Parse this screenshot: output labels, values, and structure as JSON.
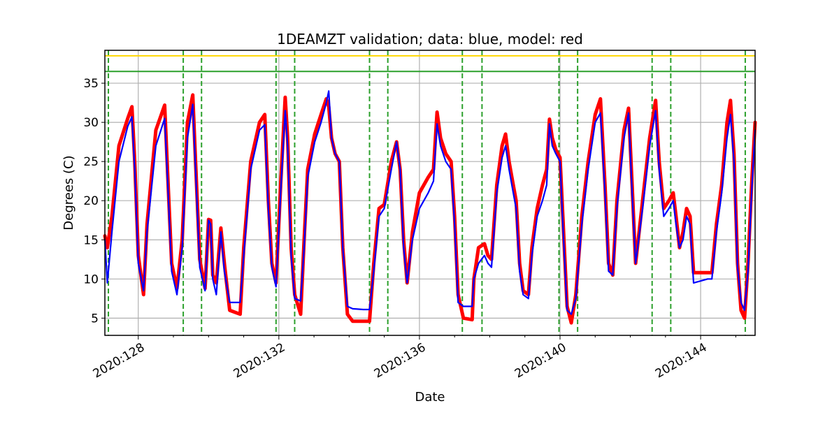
{
  "chart_data": {
    "type": "line",
    "title": "1DEAMZT validation; data: blue, model: red",
    "xlabel": "Date",
    "ylabel": "Degrees (C)",
    "xlim": [
      127.05,
      145.55
    ],
    "ylim": [
      2.8,
      39.2
    ],
    "x_ticks": [
      {
        "value": 128,
        "label": "2020:128"
      },
      {
        "value": 132,
        "label": "2020:132"
      },
      {
        "value": 136,
        "label": "2020:136"
      },
      {
        "value": 140,
        "label": "2020:140"
      },
      {
        "value": 144,
        "label": "2020:144"
      }
    ],
    "y_ticks": [
      5,
      10,
      15,
      20,
      25,
      30,
      35
    ],
    "grid": true,
    "horizontal_lines": [
      {
        "y": 38.5,
        "color": "#ffd700"
      },
      {
        "y": 36.5,
        "color": "#2ca02c"
      }
    ],
    "vertical_dashed_lines": [
      127.15,
      129.28,
      129.8,
      131.92,
      132.45,
      134.58,
      135.1,
      137.22,
      137.78,
      139.97,
      140.5,
      142.62,
      143.15,
      145.27
    ],
    "series": [
      {
        "color": "#ff0000",
        "points": [
          [
            127.05,
            15.5
          ],
          [
            127.12,
            14.0
          ],
          [
            127.25,
            18.0
          ],
          [
            127.45,
            27.0
          ],
          [
            127.7,
            30.5
          ],
          [
            127.82,
            32.0
          ],
          [
            127.9,
            25.0
          ],
          [
            128.0,
            13.0
          ],
          [
            128.15,
            8.0
          ],
          [
            128.25,
            17.0
          ],
          [
            128.5,
            29.0
          ],
          [
            128.75,
            32.2
          ],
          [
            128.85,
            22.0
          ],
          [
            128.95,
            12.0
          ],
          [
            129.1,
            8.8
          ],
          [
            129.25,
            15.0
          ],
          [
            129.4,
            30.0
          ],
          [
            129.55,
            33.5
          ],
          [
            129.62,
            26.0
          ],
          [
            129.75,
            12.5
          ],
          [
            129.9,
            8.8
          ],
          [
            130.0,
            17.6
          ],
          [
            130.06,
            17.5
          ],
          [
            130.12,
            10.5
          ],
          [
            130.22,
            9.5
          ],
          [
            130.35,
            16.5
          ],
          [
            130.45,
            12.0
          ],
          [
            130.6,
            6.0
          ],
          [
            130.9,
            5.5
          ],
          [
            131.0,
            14.0
          ],
          [
            131.2,
            25.0
          ],
          [
            131.45,
            30.0
          ],
          [
            131.6,
            31.0
          ],
          [
            131.7,
            20.0
          ],
          [
            131.8,
            12.0
          ],
          [
            131.92,
            9.5
          ],
          [
            132.05,
            22.0
          ],
          [
            132.18,
            33.2
          ],
          [
            132.25,
            28.0
          ],
          [
            132.35,
            14.0
          ],
          [
            132.45,
            8.0
          ],
          [
            132.62,
            5.5
          ],
          [
            132.72,
            15.0
          ],
          [
            132.82,
            24.0
          ],
          [
            133.02,
            28.5
          ],
          [
            133.2,
            31.0
          ],
          [
            133.35,
            33.0
          ],
          [
            133.42,
            32.0
          ],
          [
            133.5,
            28.0
          ],
          [
            133.6,
            26.0
          ],
          [
            133.72,
            25.0
          ],
          [
            133.82,
            14.0
          ],
          [
            133.95,
            5.5
          ],
          [
            134.1,
            4.6
          ],
          [
            134.4,
            4.6
          ],
          [
            134.58,
            4.6
          ],
          [
            134.7,
            12.0
          ],
          [
            134.85,
            19.0
          ],
          [
            135.0,
            19.5
          ],
          [
            135.2,
            25.0
          ],
          [
            135.35,
            27.5
          ],
          [
            135.45,
            24.0
          ],
          [
            135.55,
            15.0
          ],
          [
            135.65,
            9.5
          ],
          [
            135.8,
            16.0
          ],
          [
            136.0,
            21.0
          ],
          [
            136.25,
            23.0
          ],
          [
            136.4,
            24.0
          ],
          [
            136.5,
            31.3
          ],
          [
            136.6,
            28.0
          ],
          [
            136.75,
            26.0
          ],
          [
            136.9,
            25.0
          ],
          [
            137.0,
            18.0
          ],
          [
            137.1,
            8.0
          ],
          [
            137.25,
            5.0
          ],
          [
            137.5,
            4.8
          ],
          [
            137.55,
            10.0
          ],
          [
            137.68,
            14.0
          ],
          [
            137.85,
            14.5
          ],
          [
            137.95,
            13.0
          ],
          [
            138.05,
            12.5
          ],
          [
            138.2,
            22.0
          ],
          [
            138.35,
            27.0
          ],
          [
            138.45,
            28.5
          ],
          [
            138.55,
            25.0
          ],
          [
            138.65,
            22.5
          ],
          [
            138.75,
            20.0
          ],
          [
            138.85,
            12.0
          ],
          [
            138.95,
            8.5
          ],
          [
            139.1,
            8.0
          ],
          [
            139.2,
            14.0
          ],
          [
            139.35,
            19.0
          ],
          [
            139.5,
            22.0
          ],
          [
            139.62,
            24.0
          ],
          [
            139.7,
            30.4
          ],
          [
            139.78,
            28.0
          ],
          [
            139.88,
            26.5
          ],
          [
            140.0,
            25.5
          ],
          [
            140.08,
            18.0
          ],
          [
            140.2,
            6.5
          ],
          [
            140.32,
            4.4
          ],
          [
            140.45,
            8.0
          ],
          [
            140.62,
            18.0
          ],
          [
            140.8,
            25.0
          ],
          [
            141.0,
            31.0
          ],
          [
            141.15,
            33.0
          ],
          [
            141.28,
            22.0
          ],
          [
            141.38,
            12.0
          ],
          [
            141.5,
            10.5
          ],
          [
            141.62,
            20.0
          ],
          [
            141.82,
            29.0
          ],
          [
            141.95,
            31.8
          ],
          [
            142.05,
            22.0
          ],
          [
            142.15,
            12.0
          ],
          [
            142.35,
            20.0
          ],
          [
            142.55,
            28.0
          ],
          [
            142.72,
            32.8
          ],
          [
            142.82,
            25.0
          ],
          [
            142.95,
            19.0
          ],
          [
            143.1,
            20.0
          ],
          [
            143.22,
            21.0
          ],
          [
            143.3,
            18.0
          ],
          [
            143.4,
            14.0
          ],
          [
            143.5,
            16.0
          ],
          [
            143.6,
            19.0
          ],
          [
            143.7,
            18.0
          ],
          [
            143.8,
            10.8
          ],
          [
            144.2,
            10.8
          ],
          [
            144.32,
            10.8
          ],
          [
            144.45,
            17.0
          ],
          [
            144.6,
            22.0
          ],
          [
            144.75,
            30.0
          ],
          [
            144.85,
            32.8
          ],
          [
            144.95,
            26.0
          ],
          [
            145.05,
            12.0
          ],
          [
            145.15,
            6.0
          ],
          [
            145.25,
            5.0
          ],
          [
            145.35,
            12.0
          ],
          [
            145.45,
            22.0
          ],
          [
            145.55,
            30.0
          ]
        ]
      },
      {
        "color": "#0000ff",
        "points": [
          [
            127.05,
            15.0
          ],
          [
            127.12,
            9.5
          ],
          [
            127.25,
            16.0
          ],
          [
            127.45,
            25.0
          ],
          [
            127.7,
            29.5
          ],
          [
            127.82,
            30.7
          ],
          [
            127.9,
            24.0
          ],
          [
            128.0,
            12.0
          ],
          [
            128.15,
            8.5
          ],
          [
            128.25,
            16.0
          ],
          [
            128.5,
            27.0
          ],
          [
            128.75,
            30.5
          ],
          [
            128.85,
            21.0
          ],
          [
            128.95,
            11.0
          ],
          [
            129.1,
            8.0
          ],
          [
            129.25,
            14.0
          ],
          [
            129.4,
            28.0
          ],
          [
            129.55,
            32.3
          ],
          [
            129.62,
            25.0
          ],
          [
            129.75,
            11.5
          ],
          [
            129.9,
            8.5
          ],
          [
            130.0,
            17.5
          ],
          [
            130.06,
            17.0
          ],
          [
            130.12,
            10.0
          ],
          [
            130.22,
            8.0
          ],
          [
            130.35,
            16.0
          ],
          [
            130.45,
            11.0
          ],
          [
            130.6,
            7.0
          ],
          [
            130.9,
            7.0
          ],
          [
            131.0,
            13.0
          ],
          [
            131.2,
            24.0
          ],
          [
            131.45,
            29.0
          ],
          [
            131.6,
            29.7
          ],
          [
            131.7,
            19.0
          ],
          [
            131.8,
            11.5
          ],
          [
            131.92,
            9.0
          ],
          [
            132.05,
            21.0
          ],
          [
            132.18,
            31.5
          ],
          [
            132.25,
            27.0
          ],
          [
            132.35,
            13.0
          ],
          [
            132.45,
            7.5
          ],
          [
            132.62,
            7.2
          ],
          [
            132.72,
            14.0
          ],
          [
            132.82,
            23.0
          ],
          [
            133.02,
            27.5
          ],
          [
            133.2,
            30.0
          ],
          [
            133.35,
            32.5
          ],
          [
            133.42,
            34.0
          ],
          [
            133.5,
            28.0
          ],
          [
            133.6,
            26.0
          ],
          [
            133.72,
            25.0
          ],
          [
            133.82,
            14.0
          ],
          [
            133.95,
            6.5
          ],
          [
            134.1,
            6.2
          ],
          [
            134.4,
            6.1
          ],
          [
            134.58,
            6.1
          ],
          [
            134.7,
            11.0
          ],
          [
            134.85,
            18.0
          ],
          [
            135.0,
            19.0
          ],
          [
            135.2,
            24.0
          ],
          [
            135.35,
            27.5
          ],
          [
            135.45,
            24.0
          ],
          [
            135.55,
            14.0
          ],
          [
            135.65,
            9.5
          ],
          [
            135.8,
            15.0
          ],
          [
            136.0,
            19.0
          ],
          [
            136.25,
            21.0
          ],
          [
            136.4,
            22.5
          ],
          [
            136.5,
            29.8
          ],
          [
            136.6,
            27.0
          ],
          [
            136.75,
            25.0
          ],
          [
            136.9,
            24.0
          ],
          [
            137.0,
            17.0
          ],
          [
            137.1,
            7.0
          ],
          [
            137.25,
            6.5
          ],
          [
            137.5,
            6.5
          ],
          [
            137.55,
            10.0
          ],
          [
            137.68,
            12.0
          ],
          [
            137.85,
            13.0
          ],
          [
            137.95,
            12.0
          ],
          [
            138.05,
            11.5
          ],
          [
            138.2,
            21.0
          ],
          [
            138.35,
            25.5
          ],
          [
            138.45,
            27.0
          ],
          [
            138.55,
            24.0
          ],
          [
            138.65,
            21.5
          ],
          [
            138.75,
            19.0
          ],
          [
            138.85,
            11.0
          ],
          [
            138.95,
            8.0
          ],
          [
            139.1,
            7.5
          ],
          [
            139.2,
            13.0
          ],
          [
            139.35,
            18.0
          ],
          [
            139.5,
            20.0
          ],
          [
            139.62,
            22.0
          ],
          [
            139.7,
            29.8
          ],
          [
            139.78,
            27.0
          ],
          [
            139.88,
            26.0
          ],
          [
            140.0,
            25.0
          ],
          [
            140.08,
            17.0
          ],
          [
            140.2,
            6.0
          ],
          [
            140.32,
            5.5
          ],
          [
            140.45,
            7.5
          ],
          [
            140.62,
            17.0
          ],
          [
            140.8,
            24.0
          ],
          [
            141.0,
            30.0
          ],
          [
            141.15,
            31.2
          ],
          [
            141.28,
            21.0
          ],
          [
            141.38,
            11.0
          ],
          [
            141.5,
            10.5
          ],
          [
            141.62,
            19.0
          ],
          [
            141.82,
            28.0
          ],
          [
            141.95,
            31.2
          ],
          [
            142.05,
            21.0
          ],
          [
            142.15,
            12.0
          ],
          [
            142.35,
            19.0
          ],
          [
            142.55,
            27.0
          ],
          [
            142.72,
            31.5
          ],
          [
            142.82,
            24.0
          ],
          [
            142.95,
            18.0
          ],
          [
            143.1,
            19.0
          ],
          [
            143.22,
            20.0
          ],
          [
            143.3,
            17.0
          ],
          [
            143.4,
            14.0
          ],
          [
            143.5,
            15.0
          ],
          [
            143.6,
            18.0
          ],
          [
            143.7,
            17.0
          ],
          [
            143.8,
            9.5
          ],
          [
            144.2,
            10.0
          ],
          [
            144.32,
            10.0
          ],
          [
            144.45,
            16.0
          ],
          [
            144.6,
            21.0
          ],
          [
            144.75,
            28.0
          ],
          [
            144.85,
            31.0
          ],
          [
            144.95,
            25.0
          ],
          [
            145.05,
            11.5
          ],
          [
            145.15,
            7.0
          ],
          [
            145.25,
            6.0
          ],
          [
            145.35,
            11.0
          ],
          [
            145.45,
            21.0
          ],
          [
            145.55,
            29.0
          ]
        ]
      }
    ]
  }
}
